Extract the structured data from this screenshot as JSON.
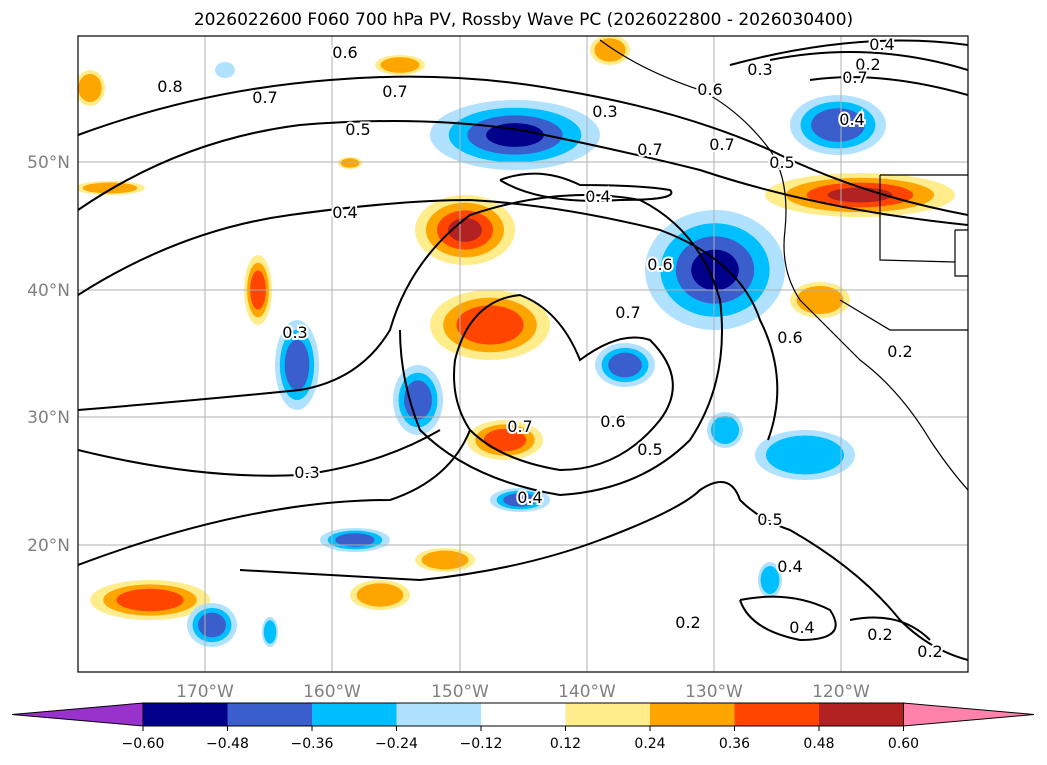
{
  "title": "2026022600 F060 700 hPa PV, Rossby Wave PC (2026022800 - 2026030400)",
  "lon_labels": [
    "170°W",
    "160°W",
    "150°W",
    "140°W",
    "130°W",
    "120°W"
  ],
  "lat_labels": [
    "50°N",
    "40°N",
    "30°N",
    "20°N"
  ],
  "contour_labels": [
    "0.6",
    "0.8",
    "0.7",
    "0.7",
    "0.5",
    "0.4",
    "0.3",
    "0.3",
    "0.7",
    "0.6",
    "0.5",
    "0.4",
    "0.4",
    "0.2",
    "0.6",
    "0.3",
    "0.7",
    "0.7",
    "0.7",
    "0.6",
    "0.5",
    "0.4",
    "0.2",
    "0.4",
    "0.2",
    "0.3",
    "0.2",
    "0.4",
    "0.4",
    "0.2",
    "0.7",
    "0.6",
    "0.5"
  ],
  "colorbar": {
    "colors": [
      "#9932cc",
      "#00008b",
      "#3a5fcd",
      "#00bfff",
      "#b0e2ff",
      "#ffffff",
      "#ffec8b",
      "#ffa500",
      "#ff4500",
      "#b22222",
      "#ff82ab"
    ],
    "ticks": [
      "−0.60",
      "−0.48",
      "−0.36",
      "−0.24",
      "−0.12",
      "0.12",
      "0.24",
      "0.36",
      "0.48",
      "0.60"
    ]
  }
}
